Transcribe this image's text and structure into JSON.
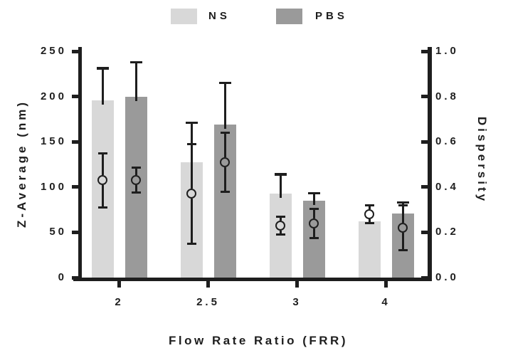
{
  "legend": {
    "items": [
      {
        "label": "NS",
        "color": "#d8d8d8"
      },
      {
        "label": "PBS",
        "color": "#9a9a9a"
      }
    ]
  },
  "chart_data": {
    "type": "bar",
    "title": "",
    "xlabel": "Flow Rate Ratio (FRR)",
    "ylabel_left": "Z-Average (nm)",
    "ylabel_right": "Dispersity",
    "categories": [
      "2",
      "2.5",
      "3",
      "4"
    ],
    "left_axis": {
      "label": "Z-Average (nm)",
      "min": 0,
      "max": 250,
      "ticks": [
        0,
        50,
        100,
        150,
        200,
        250
      ]
    },
    "right_axis": {
      "label": "Dispersity",
      "min": 0.0,
      "max": 1.0,
      "ticks": [
        0.0,
        0.2,
        0.4,
        0.6,
        0.8,
        1.0
      ]
    },
    "grid": false,
    "legend_position": "top",
    "marker": "open-circle",
    "axis_color": "#1e1e1e",
    "series": [
      {
        "name": "NS",
        "bar_color": "#d8d8d8",
        "z_average_nm": [
          196,
          127,
          93,
          62
        ],
        "z_average_err": [
          35,
          44,
          21,
          0
        ],
        "dispersity": [
          0.43,
          0.37,
          0.23,
          0.28
        ],
        "dispersity_err": [
          0.12,
          0.22,
          0.04,
          0.04
        ]
      },
      {
        "name": "PBS",
        "bar_color": "#9a9a9a",
        "z_average_nm": [
          200,
          169,
          85,
          71
        ],
        "z_average_err": [
          38,
          46,
          8,
          12
        ],
        "dispersity": [
          0.43,
          0.51,
          0.24,
          0.22
        ],
        "dispersity_err": [
          0.055,
          0.13,
          0.065,
          0.1
        ]
      }
    ]
  }
}
